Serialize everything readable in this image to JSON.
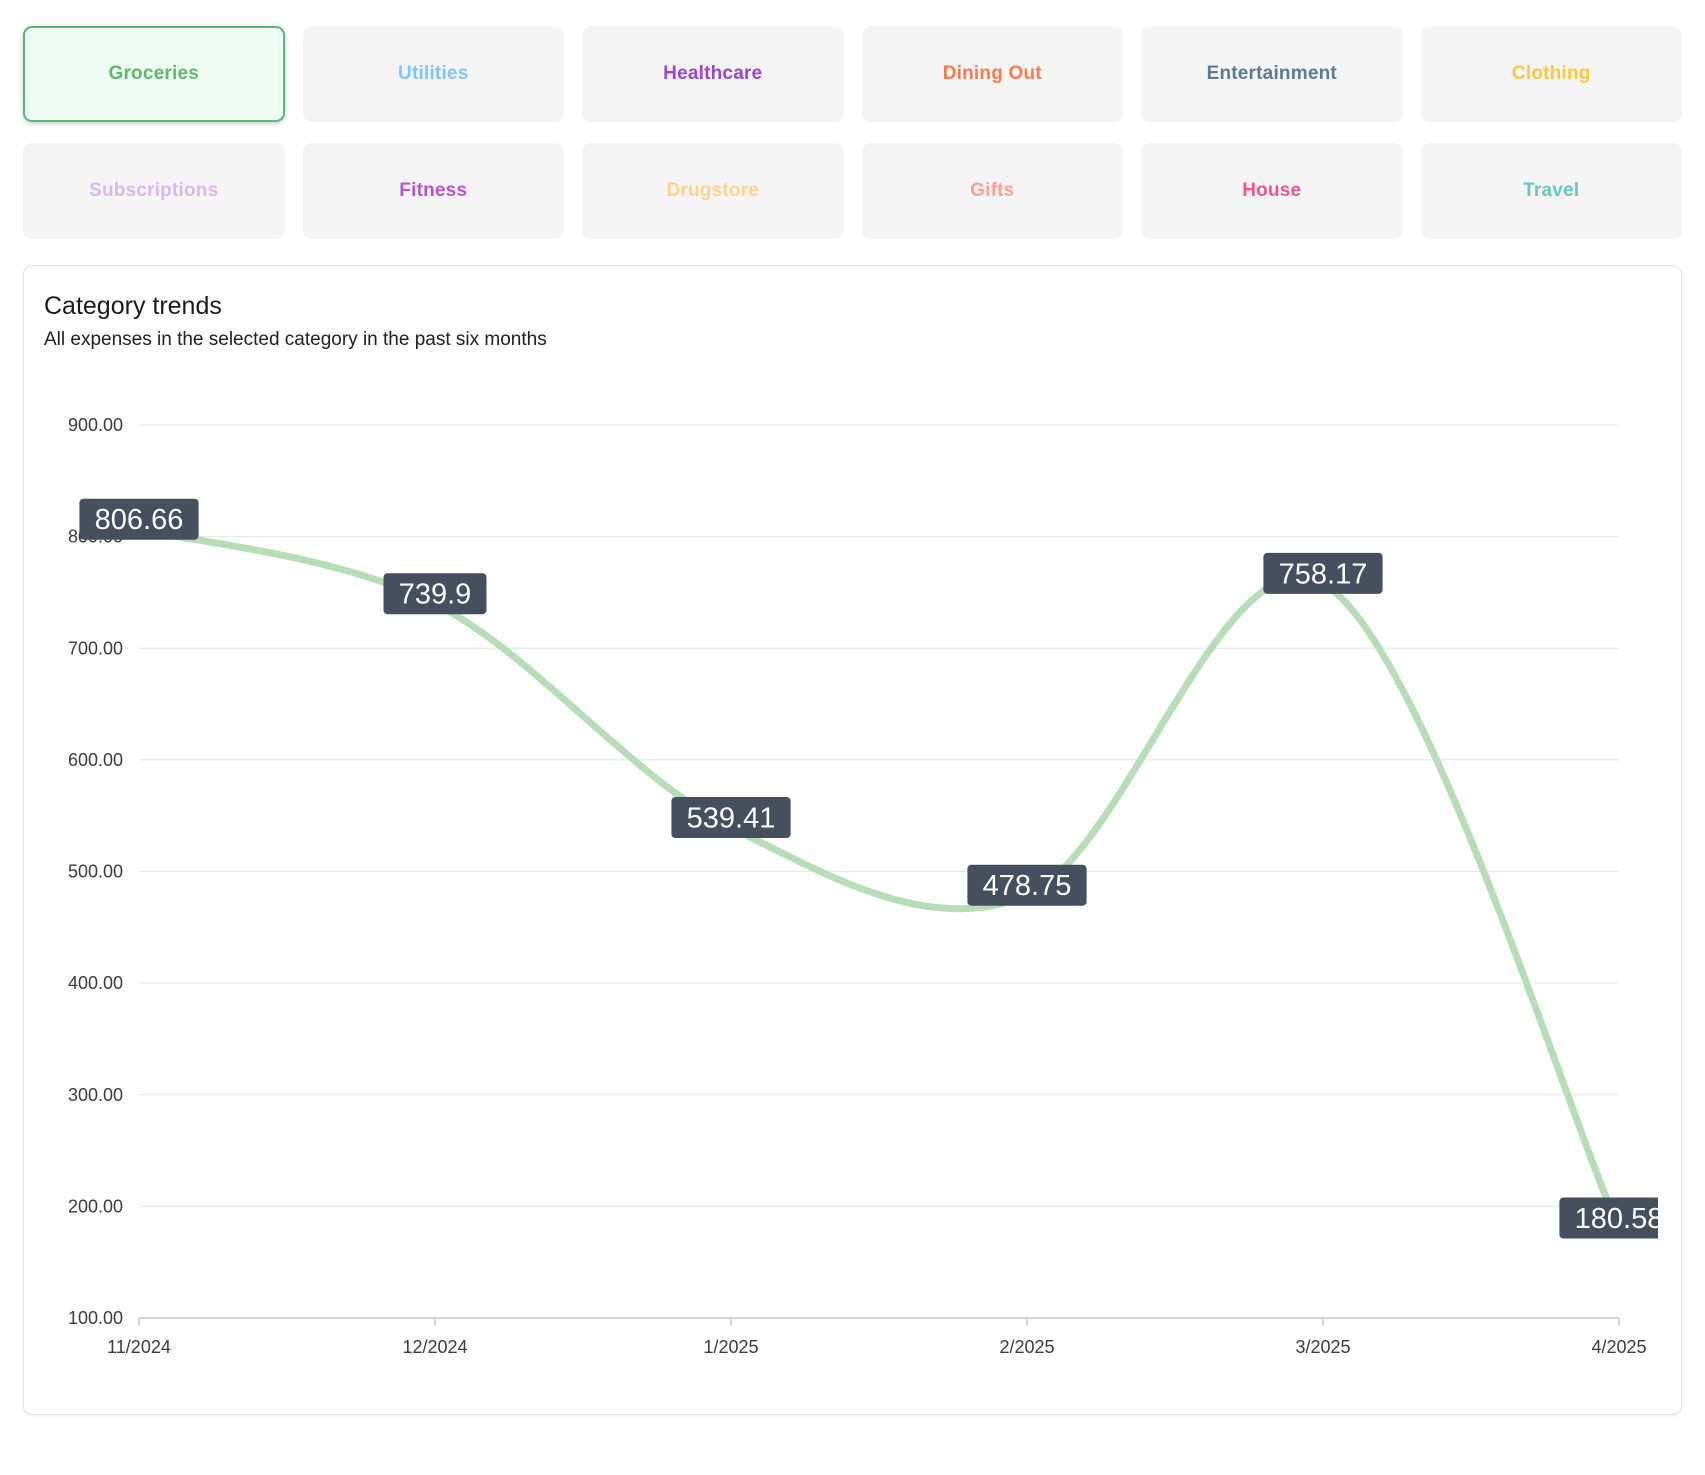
{
  "category_buttons": [
    {
      "label": "Groceries",
      "color": "#5fb96d",
      "selected": true
    },
    {
      "label": "Utilities",
      "color": "#82c5fa",
      "selected": false
    },
    {
      "label": "Healthcare",
      "color": "#9c45d0",
      "selected": false
    },
    {
      "label": "Dining Out",
      "color": "#fa7b50",
      "selected": false
    },
    {
      "label": "Entertainment",
      "color": "#5f7a8e",
      "selected": false
    },
    {
      "label": "Clothing",
      "color": "#fbc93d",
      "selected": false
    },
    {
      "label": "Subscriptions",
      "color": "#dcb8e8",
      "selected": false
    },
    {
      "label": "Fitness",
      "color": "#b556cc",
      "selected": false
    },
    {
      "label": "Drugstore",
      "color": "#fcd38a",
      "selected": false
    },
    {
      "label": "Gifts",
      "color": "#fba095",
      "selected": false
    },
    {
      "label": "House",
      "color": "#f1558f",
      "selected": false
    },
    {
      "label": "Travel",
      "color": "#6cc5c1",
      "selected": false
    }
  ],
  "selected_state": {
    "background": "#eefaf2",
    "border": "#57b87f"
  },
  "card": {
    "title": "Category trends",
    "subtitle": "All expenses in the selected category in the past six months"
  },
  "chart_data": {
    "type": "line",
    "title": "Category trends",
    "x": [
      "11/2024",
      "12/2024",
      "1/2025",
      "2/2025",
      "3/2025",
      "4/2025"
    ],
    "series": [
      {
        "name": "Groceries",
        "values": [
          806.66,
          739.9,
          539.41,
          478.75,
          758.17,
          180.58
        ]
      }
    ],
    "data_labels": [
      "806.66",
      "739.9",
      "539.41",
      "478.75",
      "758.17",
      "180.58"
    ],
    "ylim": [
      100,
      900
    ],
    "yticks": [
      900,
      800,
      700,
      600,
      500,
      400,
      300,
      200,
      100
    ],
    "ytick_labels": [
      "900.00",
      "800.00",
      "700.00",
      "600.00",
      "500.00",
      "400.00",
      "300.00",
      "200.00",
      "100.00"
    ],
    "grid": true,
    "smooth": true,
    "legend_position": "none",
    "xlabel": "",
    "ylabel": "",
    "colors": {
      "line": "#b7ddb8",
      "gridline": "#e9e9e9",
      "axis": "#c8c8c8",
      "tick_text": "#3a3d40",
      "label_box": "#464f5d",
      "label_text": "#ffffff"
    }
  }
}
